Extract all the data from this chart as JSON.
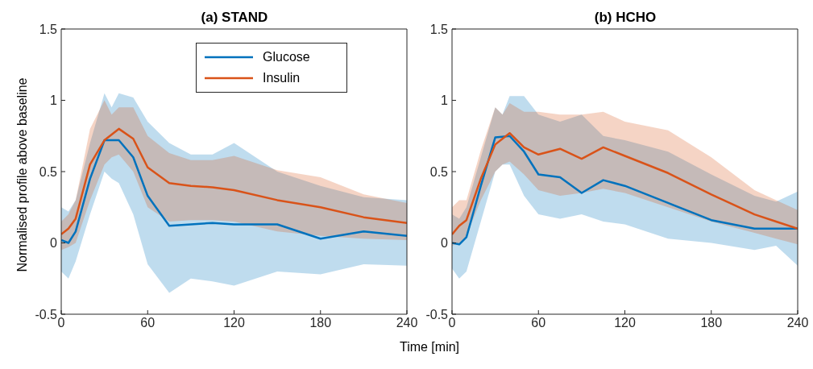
{
  "chart_data": [
    {
      "type": "line",
      "title": "(a) STAND",
      "xlabel": "Time [min]",
      "ylabel": "Normalised profile above baseline",
      "xlim": [
        0,
        240
      ],
      "xticks": [
        0,
        60,
        120,
        180,
        240
      ],
      "ylim": [
        -0.5,
        1.5
      ],
      "yticks": [
        -0.5,
        0,
        0.5,
        1,
        1.5
      ],
      "legend": "top right",
      "series": [
        {
          "name": "Glucose",
          "color": "#0072bd",
          "x": [
            0,
            5,
            10,
            20,
            30,
            35,
            40,
            50,
            60,
            75,
            90,
            105,
            120,
            150,
            180,
            210,
            240
          ],
          "values": [
            0.02,
            0,
            0.08,
            0.45,
            0.72,
            0.72,
            0.72,
            0.6,
            0.33,
            0.12,
            0.13,
            0.14,
            0.13,
            0.13,
            0.03,
            0.08,
            0.05
          ],
          "lower": [
            -0.2,
            -0.25,
            -0.13,
            0.2,
            0.5,
            0.45,
            0.42,
            0.2,
            -0.15,
            -0.35,
            -0.25,
            -0.27,
            -0.3,
            -0.2,
            -0.22,
            -0.15,
            -0.16
          ],
          "upper": [
            0.25,
            0.22,
            0.3,
            0.7,
            1.05,
            0.95,
            1.05,
            1.02,
            0.85,
            0.7,
            0.62,
            0.62,
            0.7,
            0.5,
            0.4,
            0.32,
            0.3
          ]
        },
        {
          "name": "Insulin",
          "color": "#d95319",
          "x": [
            0,
            5,
            10,
            20,
            30,
            35,
            40,
            50,
            60,
            75,
            90,
            105,
            120,
            150,
            180,
            210,
            240
          ],
          "values": [
            0.06,
            0.1,
            0.17,
            0.55,
            0.72,
            0.76,
            0.8,
            0.73,
            0.53,
            0.42,
            0.4,
            0.39,
            0.37,
            0.3,
            0.25,
            0.18,
            0.14
          ],
          "lower": [
            -0.05,
            -0.03,
            0,
            0.3,
            0.55,
            0.6,
            0.62,
            0.5,
            0.25,
            0.15,
            0.16,
            0.16,
            0.15,
            0.08,
            0.05,
            0.03,
            0.02
          ],
          "upper": [
            0.15,
            0.2,
            0.3,
            0.8,
            1,
            0.9,
            0.95,
            0.95,
            0.75,
            0.63,
            0.58,
            0.58,
            0.61,
            0.51,
            0.46,
            0.34,
            0.28
          ]
        }
      ]
    },
    {
      "type": "line",
      "title": "(b) HCHO",
      "xlim": [
        0,
        240
      ],
      "xticks": [
        0,
        60,
        120,
        180,
        240
      ],
      "ylim": [
        -0.5,
        1.5
      ],
      "yticks": [
        -0.5,
        0,
        0.5,
        1,
        1.5
      ],
      "series": [
        {
          "color": "#0072bd",
          "x": [
            0,
            5,
            10,
            20,
            30,
            35,
            40,
            50,
            60,
            75,
            90,
            105,
            120,
            150,
            180,
            210,
            225,
            240
          ],
          "values": [
            0,
            -0.01,
            0.04,
            0.4,
            0.74,
            0.745,
            0.75,
            0.64,
            0.48,
            0.46,
            0.35,
            0.44,
            0.4,
            0.28,
            0.16,
            0.1,
            0.1,
            0.1
          ],
          "lower": [
            -0.18,
            -0.25,
            -0.2,
            0.15,
            0.5,
            0.55,
            0.55,
            0.33,
            0.2,
            0.17,
            0.2,
            0.15,
            0.13,
            0.03,
            0,
            -0.05,
            -0.02,
            -0.16
          ],
          "upper": [
            0.2,
            0.17,
            0.25,
            0.6,
            0.95,
            0.9,
            1.03,
            1.03,
            0.9,
            0.85,
            0.9,
            0.75,
            0.72,
            0.64,
            0.48,
            0.33,
            0.29,
            0.36
          ]
        },
        {
          "color": "#d95319",
          "x": [
            0,
            5,
            10,
            20,
            30,
            35,
            40,
            50,
            60,
            75,
            90,
            105,
            120,
            150,
            180,
            210,
            225,
            240
          ],
          "values": [
            0.06,
            0.12,
            0.16,
            0.45,
            0.69,
            0.73,
            0.77,
            0.67,
            0.62,
            0.66,
            0.59,
            0.67,
            0.61,
            0.49,
            0.34,
            0.2,
            0.15,
            0.1
          ],
          "lower": [
            -0.02,
            0,
            0.05,
            0.3,
            0.5,
            0.55,
            0.57,
            0.48,
            0.37,
            0.33,
            0.35,
            0.38,
            0.35,
            0.25,
            0.15,
            0.07,
            0.03,
            -0.01
          ],
          "upper": [
            0.25,
            0.3,
            0.3,
            0.65,
            0.95,
            0.9,
            0.98,
            0.92,
            0.92,
            0.9,
            0.9,
            0.92,
            0.85,
            0.79,
            0.6,
            0.37,
            0.3,
            0.23
          ]
        }
      ]
    }
  ]
}
